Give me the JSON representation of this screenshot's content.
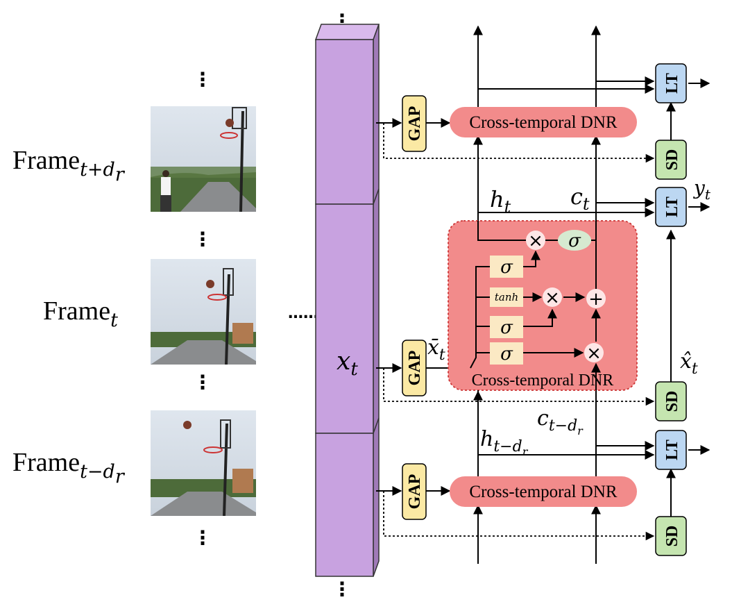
{
  "frames": [
    {
      "id": "plus",
      "main": "Frame",
      "sub": "t+d",
      "subsub": "r"
    },
    {
      "id": "cur",
      "main": "Frame",
      "sub": "t",
      "subsub": ""
    },
    {
      "id": "minus",
      "main": "Frame",
      "sub": "t−d",
      "subsub": "r"
    }
  ],
  "dots": "⋮",
  "ellipsis": "……",
  "feature": {
    "symbol": "x",
    "sub": "t"
  },
  "gap_label": "GAP",
  "dnr_label": "Cross-temporal DNR",
  "lt_label": "LT",
  "sd_label": "SD",
  "gate_labels": {
    "sigma": "σ",
    "tanh": "tanh",
    "times": "×",
    "plus": "+"
  },
  "math": {
    "h_t": {
      "symbol": "h",
      "sub": "t"
    },
    "c_t": {
      "symbol": "c",
      "sub": "t"
    },
    "y_t": {
      "symbol": "y",
      "sub": "t"
    },
    "xbar_t": {
      "symbol": "x̄",
      "sub": "t"
    },
    "xhat_t": {
      "symbol": "x̂",
      "sub": "t"
    },
    "h_prev": {
      "symbol": "h",
      "sub": "t−d",
      "subsub": "r"
    },
    "c_prev": {
      "symbol": "c",
      "sub": "t−d",
      "subsub": "r"
    }
  },
  "colors": {
    "feature_fill": "#c8a2e0",
    "gap_fill": "#fbe9a4",
    "dnr_fill": "#f28b8b",
    "lt_fill": "#bcd7f2",
    "sd_fill": "#c5e5b0",
    "sigma_ellipse": "#d6ead0",
    "gate_circle": "#fde6e6",
    "gate_box": "#fbe9c4"
  }
}
